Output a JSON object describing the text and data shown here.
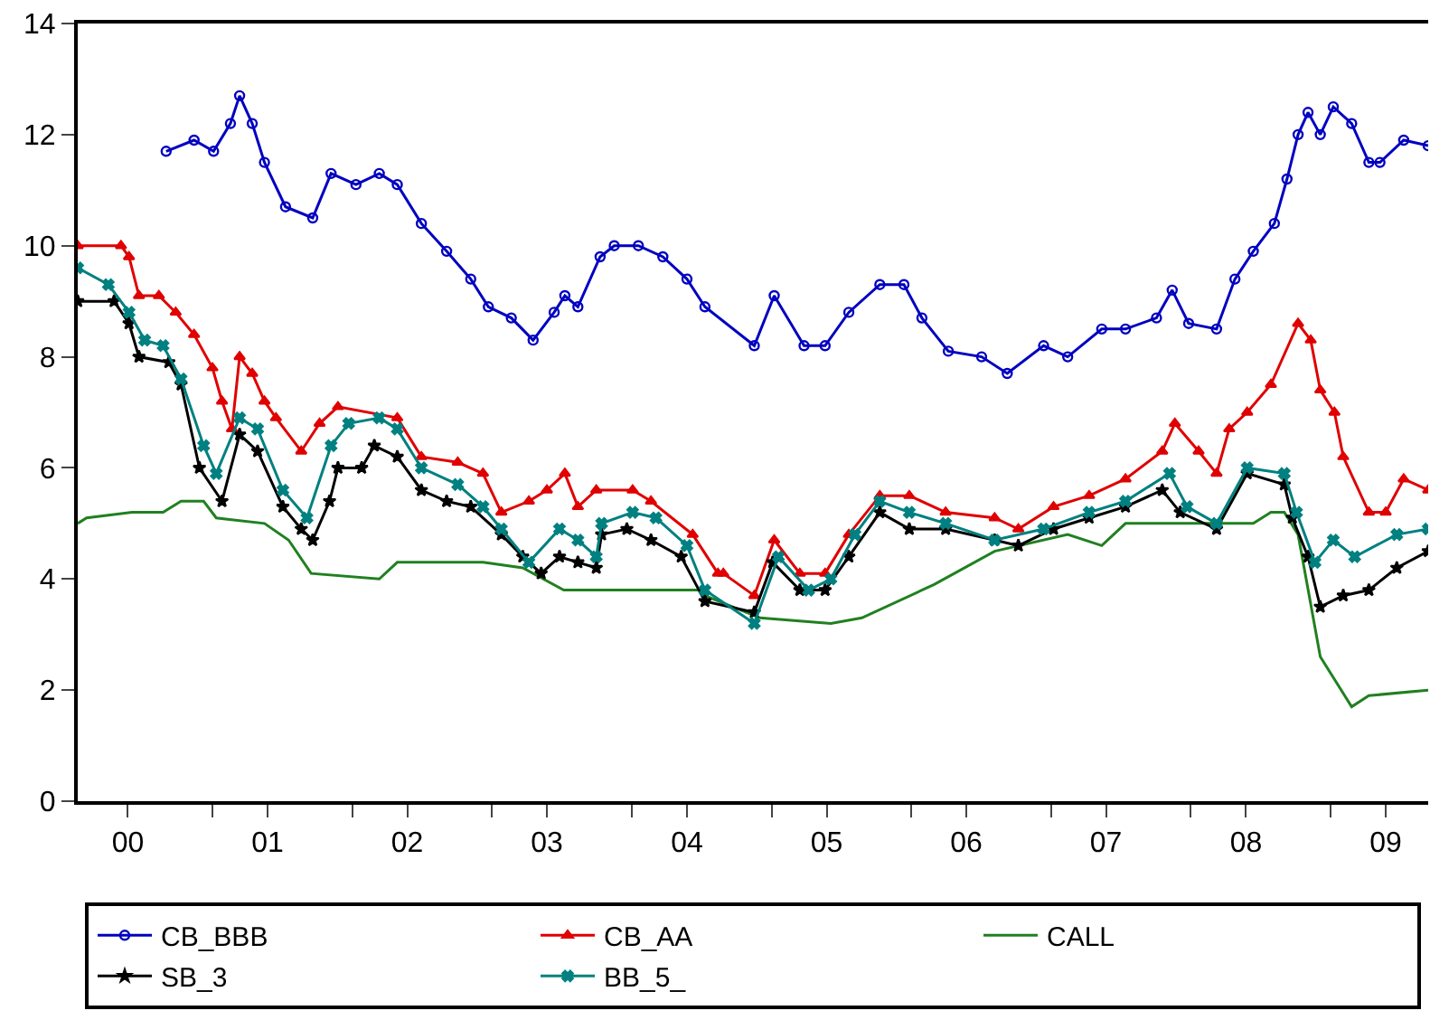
{
  "chart_data": {
    "type": "line",
    "xlim": [
      "2000-01-15",
      "2009-09-13"
    ],
    "ylim": [
      0,
      14
    ],
    "yticks": [
      0,
      2,
      4,
      6,
      8,
      10,
      12,
      14
    ],
    "xticks": [
      {
        "value": "2000-05-25",
        "label": "00"
      },
      {
        "value": "2001-05-25",
        "label": "01"
      },
      {
        "value": "2002-05-25",
        "label": "02"
      },
      {
        "value": "2003-05-25",
        "label": "03"
      },
      {
        "value": "2004-05-25",
        "label": "04"
      },
      {
        "value": "2005-05-25",
        "label": "05"
      },
      {
        "value": "2006-05-25",
        "label": "06"
      },
      {
        "value": "2007-05-25",
        "label": "07"
      },
      {
        "value": "2008-05-25",
        "label": "08"
      },
      {
        "value": "2009-05-25",
        "label": "09"
      },
      {
        "value": "2001-01-01",
        "label": null
      },
      {
        "value": "2002-01-01",
        "label": null
      },
      {
        "value": "2003-01-01",
        "label": null
      },
      {
        "value": "2004-01-01",
        "label": null
      },
      {
        "value": "2005-01-01",
        "label": null
      },
      {
        "value": "2006-01-01",
        "label": null
      },
      {
        "value": "2007-01-01",
        "label": null
      },
      {
        "value": "2008-01-01",
        "label": null
      },
      {
        "value": "2009-01-01",
        "label": null
      }
    ],
    "grid": false,
    "legend": "bottom",
    "line_style": "solid",
    "series": [
      {
        "name": "CB_BBB",
        "color": "#0000c0",
        "marker": "circle",
        "x": [
          "2000-09-02",
          "2000-11-14",
          "2001-01-04",
          "2001-02-17",
          "2001-03-13",
          "2001-04-15",
          "2001-05-17",
          "2001-07-11",
          "2001-09-20",
          "2001-11-07",
          "2002-01-11",
          "2002-03-13",
          "2002-04-29",
          "2002-07-01",
          "2002-09-05",
          "2002-11-07",
          "2002-12-23",
          "2003-02-21",
          "2003-04-19",
          "2003-06-13",
          "2003-07-11",
          "2003-08-14",
          "2003-10-11",
          "2003-11-17",
          "2004-01-19",
          "2004-03-23",
          "2004-05-25",
          "2004-07-11",
          "2004-11-17",
          "2005-01-08",
          "2005-03-27",
          "2005-05-21",
          "2005-07-22",
          "2005-10-11",
          "2005-12-13",
          "2006-01-29",
          "2006-04-08",
          "2006-07-04",
          "2006-09-09",
          "2006-12-13",
          "2007-02-14",
          "2007-05-14",
          "2007-07-15",
          "2007-10-04",
          "2007-11-14",
          "2007-12-27",
          "2008-03-09",
          "2008-04-26",
          "2008-06-13",
          "2008-08-07",
          "2008-09-09",
          "2008-10-08",
          "2008-11-03",
          "2008-12-05",
          "2009-01-08",
          "2009-02-25",
          "2009-04-11",
          "2009-05-10",
          "2009-07-11",
          "2009-09-13"
        ],
        "values": [
          11.7,
          11.9,
          11.7,
          12.2,
          12.7,
          12.2,
          11.5,
          10.7,
          10.5,
          11.3,
          11.1,
          11.3,
          11.1,
          10.4,
          9.9,
          9.4,
          8.9,
          8.7,
          8.3,
          8.8,
          9.1,
          8.9,
          9.8,
          10.0,
          10.0,
          9.8,
          9.4,
          8.9,
          8.2,
          9.1,
          8.2,
          8.2,
          8.8,
          9.3,
          9.3,
          8.7,
          8.1,
          8.0,
          7.7,
          8.2,
          8.0,
          8.5,
          8.5,
          8.7,
          9.2,
          8.6,
          8.5,
          9.4,
          9.9,
          10.4,
          11.2,
          12.0,
          12.4,
          12.0,
          12.5,
          12.2,
          11.5,
          11.5,
          11.9,
          11.8
        ]
      },
      {
        "name": "CB_AA",
        "color": "#e00000",
        "marker": "triangle",
        "x": [
          "2000-01-15",
          "2000-05-07",
          "2000-05-28",
          "2000-06-23",
          "2000-08-14",
          "2000-09-27",
          "2000-11-14",
          "2001-01-01",
          "2001-01-26",
          "2001-02-21",
          "2001-03-13",
          "2001-04-15",
          "2001-05-17",
          "2001-06-16",
          "2001-08-21",
          "2001-10-08",
          "2001-11-25",
          "2002-04-29",
          "2002-07-01",
          "2002-10-04",
          "2002-12-09",
          "2003-01-26",
          "2003-04-08",
          "2003-05-25",
          "2003-07-11",
          "2003-08-14",
          "2003-10-01",
          "2004-01-04",
          "2004-02-21",
          "2004-06-09",
          "2004-08-14",
          "2004-08-28",
          "2004-11-17",
          "2005-01-08",
          "2005-03-16",
          "2005-05-21",
          "2005-07-22",
          "2005-10-11",
          "2005-12-27",
          "2006-04-01",
          "2006-08-07",
          "2006-10-08",
          "2007-01-08",
          "2007-04-11",
          "2007-07-15",
          "2007-10-19",
          "2007-11-21",
          "2008-01-22",
          "2008-03-09",
          "2008-04-11",
          "2008-05-28",
          "2008-07-29",
          "2008-10-08",
          "2008-11-10",
          "2008-12-05",
          "2009-01-11",
          "2009-02-03",
          "2009-04-11",
          "2009-05-25",
          "2009-07-11",
          "2009-09-13"
        ],
        "values": [
          10.0,
          10.0,
          9.8,
          9.1,
          9.1,
          8.8,
          8.4,
          7.8,
          7.2,
          6.7,
          8.0,
          7.7,
          7.2,
          6.9,
          6.3,
          6.8,
          7.1,
          6.9,
          6.2,
          6.1,
          5.9,
          5.2,
          5.4,
          5.6,
          5.9,
          5.3,
          5.6,
          5.6,
          5.4,
          4.8,
          4.1,
          4.1,
          3.7,
          4.7,
          4.1,
          4.1,
          4.8,
          5.5,
          5.5,
          5.2,
          5.1,
          4.9,
          5.3,
          5.5,
          5.8,
          6.3,
          6.8,
          6.3,
          5.9,
          6.7,
          7.0,
          7.5,
          8.6,
          8.3,
          7.4,
          7.0,
          6.2,
          5.2,
          5.2,
          5.8,
          5.6
        ]
      },
      {
        "name": "CALL",
        "color": "#208020",
        "marker": "none",
        "x": [
          "2000-01-15",
          "2000-02-07",
          "2000-06-05",
          "2000-08-25",
          "2000-10-11",
          "2000-12-09",
          "2001-01-11",
          "2001-05-17",
          "2001-07-19",
          "2001-09-16",
          "2002-03-13",
          "2002-04-29",
          "2002-12-09",
          "2003-03-23",
          "2003-07-08",
          "2003-10-15",
          "2004-06-27",
          "2004-07-11",
          "2004-12-02",
          "2005-06-05",
          "2005-08-25",
          "2006-03-02",
          "2006-08-07",
          "2007-02-14",
          "2007-05-14",
          "2007-07-15",
          "2008-06-13",
          "2008-07-29",
          "2008-09-02",
          "2008-10-08",
          "2008-12-05",
          "2009-02-25",
          "2009-04-11",
          "2009-09-13"
        ],
        "values": [
          5.0,
          5.1,
          5.2,
          5.2,
          5.4,
          5.4,
          5.1,
          5.0,
          4.7,
          4.1,
          4.0,
          4.3,
          4.3,
          4.2,
          3.8,
          3.8,
          3.8,
          3.7,
          3.3,
          3.2,
          3.3,
          3.9,
          4.5,
          4.8,
          4.6,
          5.0,
          5.0,
          5.2,
          5.2,
          4.8,
          2.6,
          1.7,
          1.9,
          2.0
        ]
      },
      {
        "name": "SB_3",
        "color": "#000000",
        "marker": "star",
        "x": [
          "2000-01-15",
          "2000-04-19",
          "2000-05-28",
          "2000-06-23",
          "2000-09-09",
          "2000-10-11",
          "2000-11-28",
          "2001-01-26",
          "2001-03-13",
          "2001-04-29",
          "2001-07-04",
          "2001-08-21",
          "2001-09-20",
          "2001-11-03",
          "2001-11-25",
          "2002-01-26",
          "2002-02-28",
          "2002-04-29",
          "2002-07-01",
          "2002-09-05",
          "2002-11-07",
          "2003-01-26",
          "2003-03-23",
          "2003-05-10",
          "2003-06-27",
          "2003-08-14",
          "2003-10-01",
          "2003-10-15",
          "2003-12-20",
          "2004-02-21",
          "2004-05-10",
          "2004-07-11",
          "2004-11-17",
          "2005-01-04",
          "2005-03-16",
          "2005-05-21",
          "2005-07-22",
          "2005-10-11",
          "2005-12-27",
          "2006-04-01",
          "2006-08-07",
          "2006-10-08",
          "2007-01-08",
          "2007-04-11",
          "2007-07-15",
          "2007-10-19",
          "2007-12-05",
          "2008-03-09",
          "2008-05-28",
          "2008-09-02",
          "2008-09-23",
          "2008-11-03",
          "2008-12-05",
          "2009-02-03",
          "2009-04-11",
          "2009-06-23",
          "2009-09-13"
        ],
        "values": [
          9.0,
          9.0,
          8.6,
          8.0,
          7.9,
          7.5,
          6.0,
          5.4,
          6.6,
          6.3,
          5.3,
          4.9,
          4.7,
          5.4,
          6.0,
          6.0,
          6.4,
          6.2,
          5.6,
          5.4,
          5.3,
          4.8,
          4.4,
          4.1,
          4.4,
          4.3,
          4.2,
          4.8,
          4.9,
          4.7,
          4.4,
          3.6,
          3.4,
          4.3,
          3.8,
          3.8,
          4.4,
          5.2,
          4.9,
          4.9,
          4.7,
          4.6,
          4.9,
          5.1,
          5.3,
          5.6,
          5.2,
          4.9,
          5.9,
          5.7,
          5.1,
          4.4,
          3.5,
          3.7,
          3.8,
          4.2,
          4.5
        ]
      },
      {
        "name": "BB_5_",
        "color": "#008080",
        "marker": "cross",
        "x": [
          "2000-01-15",
          "2000-04-04",
          "2000-05-28",
          "2000-07-08",
          "2000-08-25",
          "2000-10-11",
          "2000-12-09",
          "2001-01-11",
          "2001-03-13",
          "2001-04-29",
          "2001-07-04",
          "2001-09-05",
          "2001-11-07",
          "2001-12-23",
          "2002-03-13",
          "2002-04-29",
          "2002-07-01",
          "2002-10-04",
          "2002-12-09",
          "2003-01-26",
          "2003-04-08",
          "2003-06-27",
          "2003-08-14",
          "2003-10-01",
          "2003-10-15",
          "2004-01-04",
          "2004-03-05",
          "2004-05-25",
          "2004-07-11",
          "2004-11-17",
          "2005-01-19",
          "2005-04-08",
          "2005-06-05",
          "2005-08-07",
          "2005-10-11",
          "2005-12-27",
          "2006-04-01",
          "2006-08-07",
          "2006-12-13",
          "2007-04-11",
          "2007-07-15",
          "2007-11-07",
          "2007-12-23",
          "2008-03-09",
          "2008-05-28",
          "2008-09-02",
          "2008-10-04",
          "2008-11-21",
          "2009-01-08",
          "2009-03-05",
          "2009-06-23",
          "2009-09-13"
        ],
        "values": [
          9.6,
          9.3,
          8.8,
          8.3,
          8.2,
          7.6,
          6.4,
          5.9,
          6.9,
          6.7,
          5.6,
          5.1,
          6.4,
          6.8,
          6.9,
          6.7,
          6.0,
          5.7,
          5.3,
          4.9,
          4.3,
          4.9,
          4.7,
          4.4,
          5.0,
          5.2,
          5.1,
          4.6,
          3.8,
          3.2,
          4.4,
          3.8,
          4.0,
          4.8,
          5.4,
          5.2,
          5.0,
          4.7,
          4.9,
          5.2,
          5.4,
          5.9,
          5.3,
          5.0,
          6.0,
          5.9,
          5.2,
          4.3,
          4.7,
          4.4,
          4.8,
          4.9
        ]
      }
    ]
  }
}
